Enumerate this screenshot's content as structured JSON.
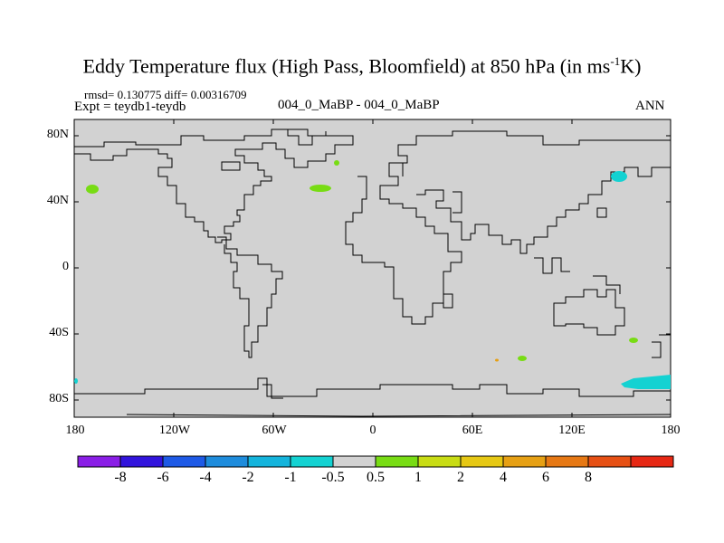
{
  "title": {
    "main": "Eddy Temperature flux (High Pass, Bloomfield) at 850 hPa (in ms",
    "sup": "-1",
    "end": "K)"
  },
  "stats": "rmsd= 0.130775 diff= 0.00316709",
  "expt": "Expt = teydb1-teydb",
  "center_label": "004_0_MaBP - 004_0_MaBP",
  "season": "ANN",
  "lat_labels": [
    "80N",
    "40N",
    "0",
    "40S",
    "80S"
  ],
  "lon_labels": [
    "180",
    "120W",
    "60W",
    "0",
    "60E",
    "120E",
    "180"
  ],
  "colorbar": {
    "colors": [
      "#8a1ee6",
      "#3214dc",
      "#1e5ae6",
      "#1e8cdc",
      "#14b4dc",
      "#14d2d2",
      "#d2d2d2",
      "#78dc14",
      "#c8dc14",
      "#e6c814",
      "#e6a014",
      "#e67814",
      "#e65014",
      "#e62814"
    ],
    "labels": [
      "-8",
      "-6",
      "-4",
      "-2",
      "-1",
      "-0.5",
      "0.5",
      "1",
      "2",
      "4",
      "6",
      "8"
    ]
  },
  "colors": {
    "ocean_fill": "#d2d2d2",
    "coast": "#000000",
    "green_blob": "#78dc14",
    "cyan_blob": "#14d2d2",
    "orange_blob": "#e6a014"
  }
}
